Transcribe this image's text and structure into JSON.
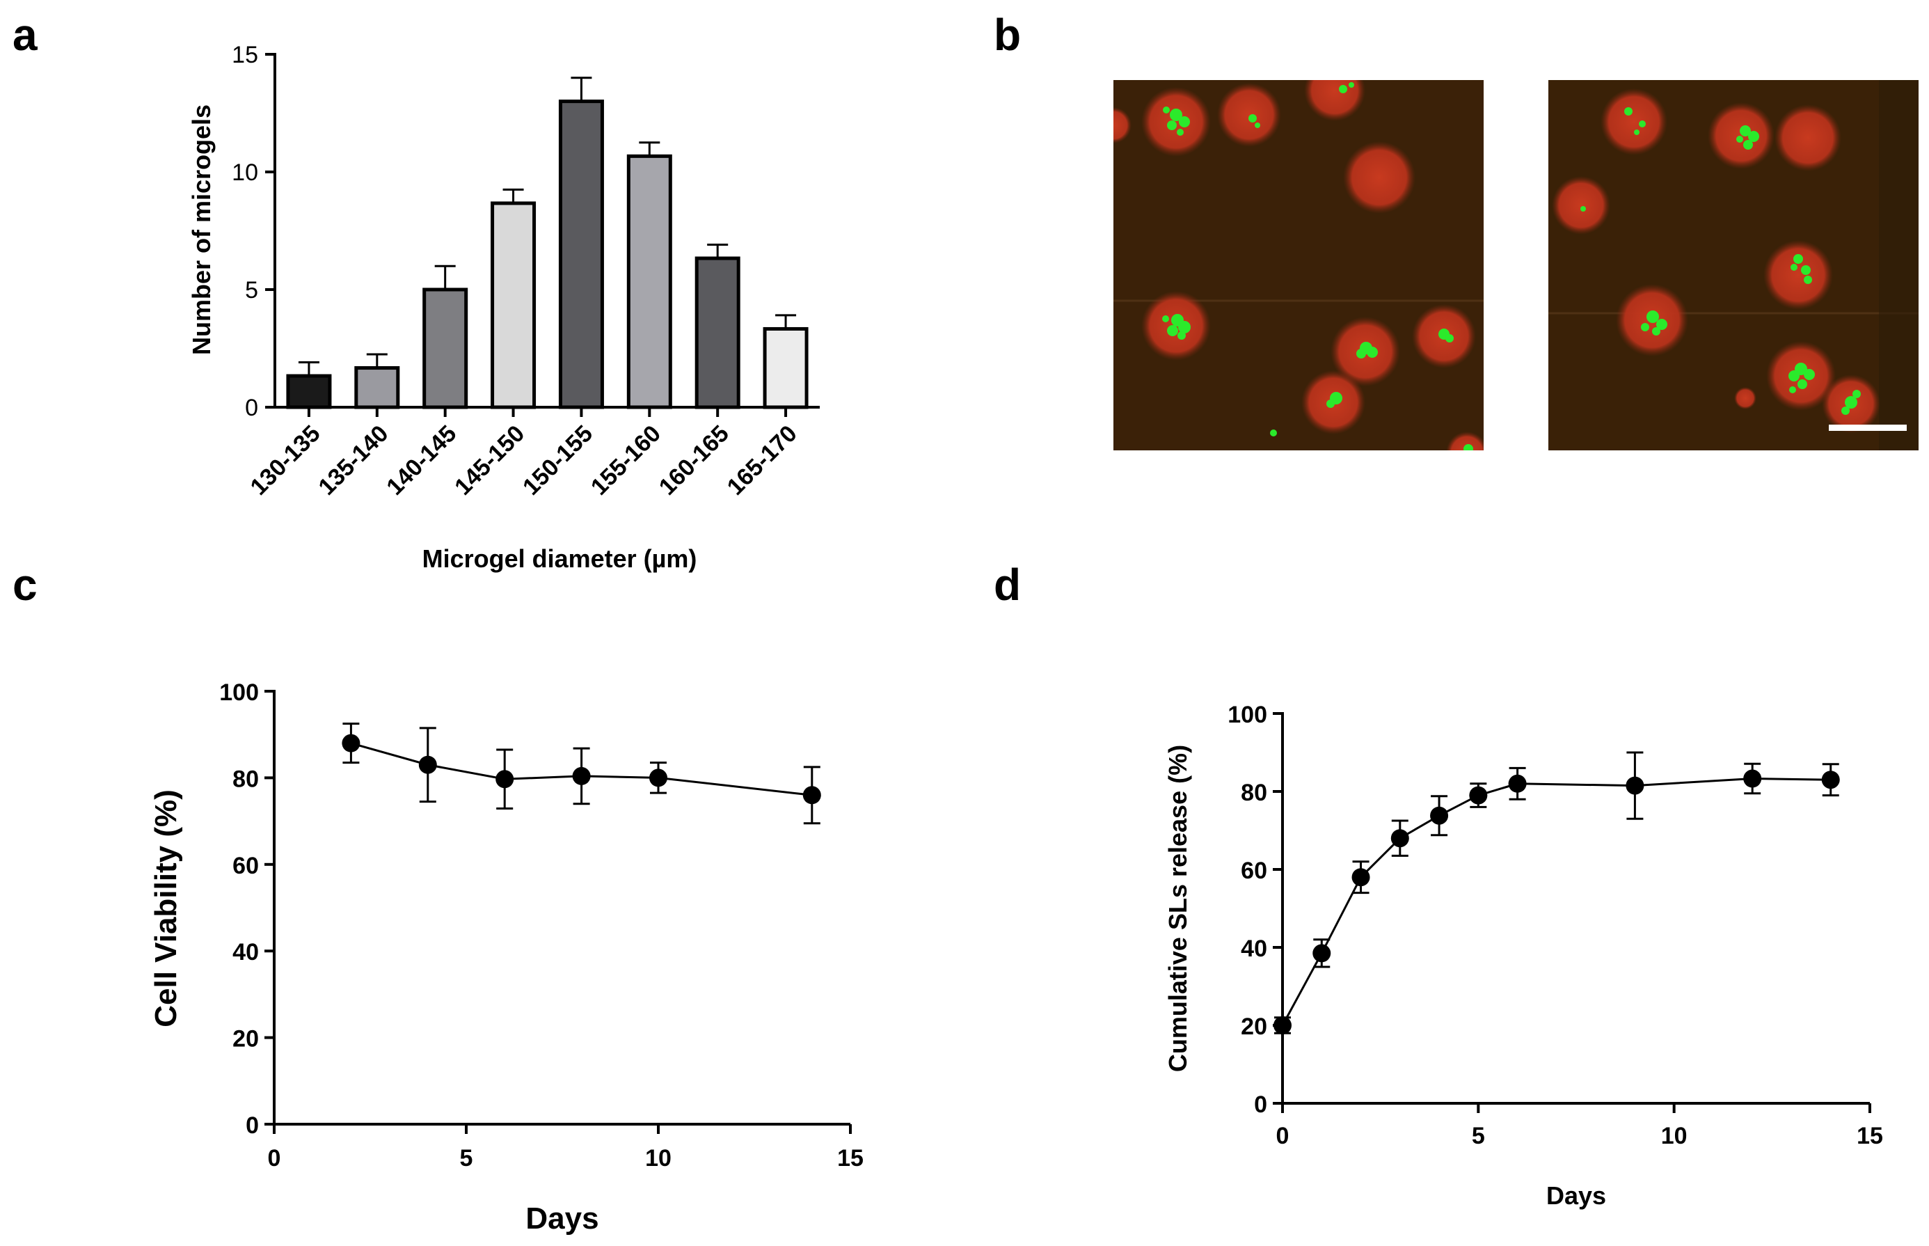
{
  "panels": {
    "a": {
      "letter": "a"
    },
    "b": {
      "letter": "b"
    },
    "c": {
      "letter": "c"
    },
    "d": {
      "letter": "d"
    }
  },
  "chart_data": [
    {
      "panel": "a",
      "type": "bar",
      "categories": [
        "130-135",
        "135-140",
        "140-145",
        "145-150",
        "150-155",
        "155-160",
        "160-165",
        "165-170"
      ],
      "values": [
        1.33,
        1.67,
        5.0,
        8.67,
        13.0,
        10.67,
        6.33,
        3.33
      ],
      "errors": [
        0.58,
        0.58,
        1.0,
        0.58,
        1.0,
        0.58,
        0.58,
        0.58
      ],
      "bar_colors": [
        "#1a1a1a",
        "#9a9aa0",
        "#7e7e82",
        "#d9d9d9",
        "#5a5a5e",
        "#a6a6ac",
        "#5a5a5e",
        "#ececec"
      ],
      "xlabel": "Microgel diameter (µm)",
      "ylabel": "Number of microgels",
      "ylim": [
        0,
        15
      ],
      "yticks": [
        0,
        5,
        10,
        15
      ],
      "grid": false
    },
    {
      "panel": "c",
      "type": "line",
      "x": [
        2,
        4,
        6,
        8,
        10,
        14
      ],
      "y": [
        88,
        83,
        79.7,
        80.4,
        80,
        76
      ],
      "errors": [
        4.5,
        8.5,
        6.8,
        6.4,
        3.5,
        6.5
      ],
      "xlabel": "Days",
      "ylabel": "Cell Viability (%)",
      "xlim": [
        0,
        15
      ],
      "ylim": [
        0,
        100
      ],
      "xticks": [
        0,
        5,
        10,
        15
      ],
      "yticks": [
        0,
        20,
        40,
        60,
        80,
        100
      ],
      "grid": false
    },
    {
      "panel": "d",
      "type": "line",
      "x": [
        0,
        1,
        2,
        3,
        4,
        5,
        6,
        9,
        12,
        14
      ],
      "y": [
        20,
        38.5,
        58,
        68,
        73.8,
        79,
        82,
        81.5,
        83.3,
        83
      ],
      "errors": [
        2,
        3.5,
        4,
        4.5,
        5,
        3,
        4,
        8.5,
        3.8,
        4
      ],
      "xlabel": "Days",
      "ylabel": "Cumulative SLs release (%)",
      "xlim": [
        0,
        15
      ],
      "ylim": [
        0,
        100
      ],
      "xticks": [
        0,
        5,
        10,
        15
      ],
      "yticks": [
        0,
        20,
        40,
        60,
        80,
        100
      ],
      "grid": false
    }
  ],
  "micrograph": {
    "background": "#3b2108",
    "particle_color": "#c2321c",
    "cell_color": "#2bea2b"
  }
}
